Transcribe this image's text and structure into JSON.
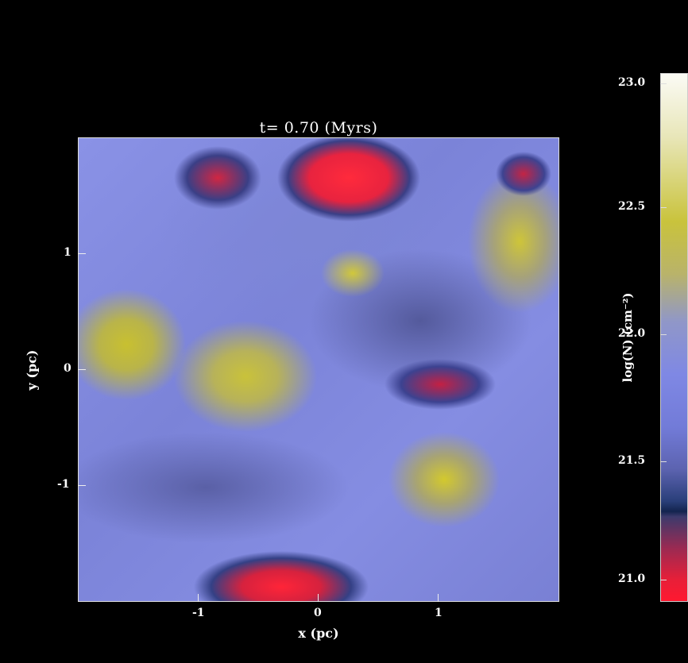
{
  "title": "t= 0.70 (Myrs)",
  "xlabel": "x (pc)",
  "ylabel": "y (pc)",
  "x_ticks": [
    "-1",
    "0",
    "1"
  ],
  "y_ticks": [
    "1",
    "0",
    "-1"
  ],
  "colorbar": {
    "title": "log(N) (cm⁻²)",
    "ticks": [
      "23.0",
      "22.5",
      "22.0",
      "21.5",
      "21.0"
    ],
    "range": [
      21.0,
      23.0
    ]
  },
  "colors": {
    "background": "#000000",
    "low": "#ff1830",
    "mid": "#7f88e4",
    "high": "#c9c33c",
    "top": "#fbfbf5"
  }
}
